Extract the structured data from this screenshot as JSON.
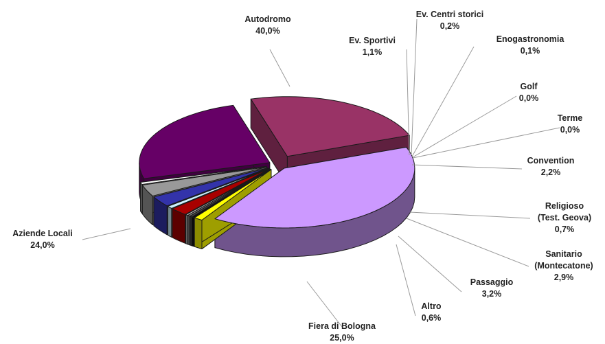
{
  "chart_data": {
    "type": "pie",
    "style": "3d-exploded",
    "title": "",
    "legend": "none (category labels with leader lines)",
    "slices": [
      {
        "label": "Autodromo",
        "value_label": "40,0%",
        "value": 40.0,
        "color": "#cc99ff"
      },
      {
        "label": "Ev. Sportivi",
        "value_label": "1,1%",
        "value": 1.1,
        "color": "#ffff00"
      },
      {
        "label": "Ev. Centri storici",
        "value_label": "0,2%",
        "value": 0.2,
        "color": "#0d0d0d"
      },
      {
        "label": "Enogastronomia",
        "value_label": "0,1%",
        "value": 0.1,
        "color": "#4a4a4a"
      },
      {
        "label": "Golf",
        "value_label": "0,0%",
        "value": 0.0,
        "color": "#808080"
      },
      {
        "label": "Terme",
        "value_label": "0,0%",
        "value": 0.0,
        "color": "#bfbfbf"
      },
      {
        "label": "Convention",
        "value_label": "2,2%",
        "value": 2.2,
        "color": "#a80000"
      },
      {
        "label": "Religioso\n(Test. Geova)",
        "value_label": "0,7%",
        "value": 0.7,
        "color": "#ccf2ff"
      },
      {
        "label": "Sanitario\n(Montecatone)",
        "value_label": "2,9%",
        "value": 2.9,
        "color": "#3333aa"
      },
      {
        "label": "Passaggio",
        "value_label": "3,2%",
        "value": 3.2,
        "color": "#999999"
      },
      {
        "label": "Altro",
        "value_label": "0,6%",
        "value": 0.6,
        "color": "#ffffff"
      },
      {
        "label": "Fiera di Bologna",
        "value_label": "25,0%",
        "value": 25.0,
        "color": "#660066"
      },
      {
        "label": "Aziende Locali",
        "value_label": "24,0%",
        "value": 24.0,
        "color": "#993366"
      }
    ]
  }
}
